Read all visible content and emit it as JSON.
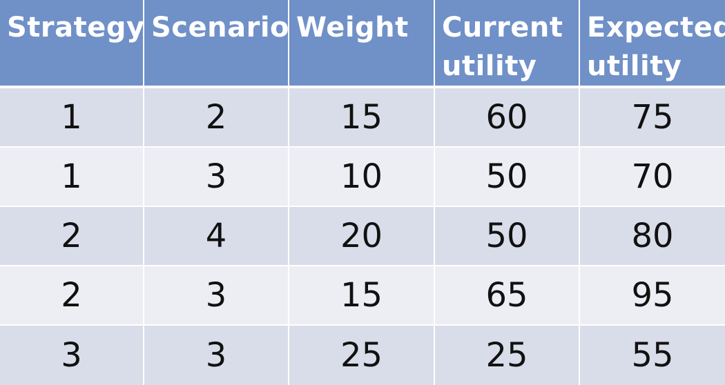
{
  "table": {
    "headers": [
      "Strategy",
      "Scenario",
      "Weight",
      "Current\nutility",
      "Expected\nutility"
    ],
    "rows": [
      [
        "1",
        "2",
        "15",
        "60",
        "75"
      ],
      [
        "1",
        "3",
        "10",
        "50",
        "70"
      ],
      [
        "2",
        "4",
        "20",
        "50",
        "80"
      ],
      [
        "2",
        "3",
        "15",
        "65",
        "95"
      ],
      [
        "3",
        "3",
        "25",
        "25",
        "55"
      ]
    ]
  },
  "colors": {
    "header_bg": "#7090c8",
    "row_odd_bg": "#d9dde9",
    "row_even_bg": "#eceef4"
  }
}
